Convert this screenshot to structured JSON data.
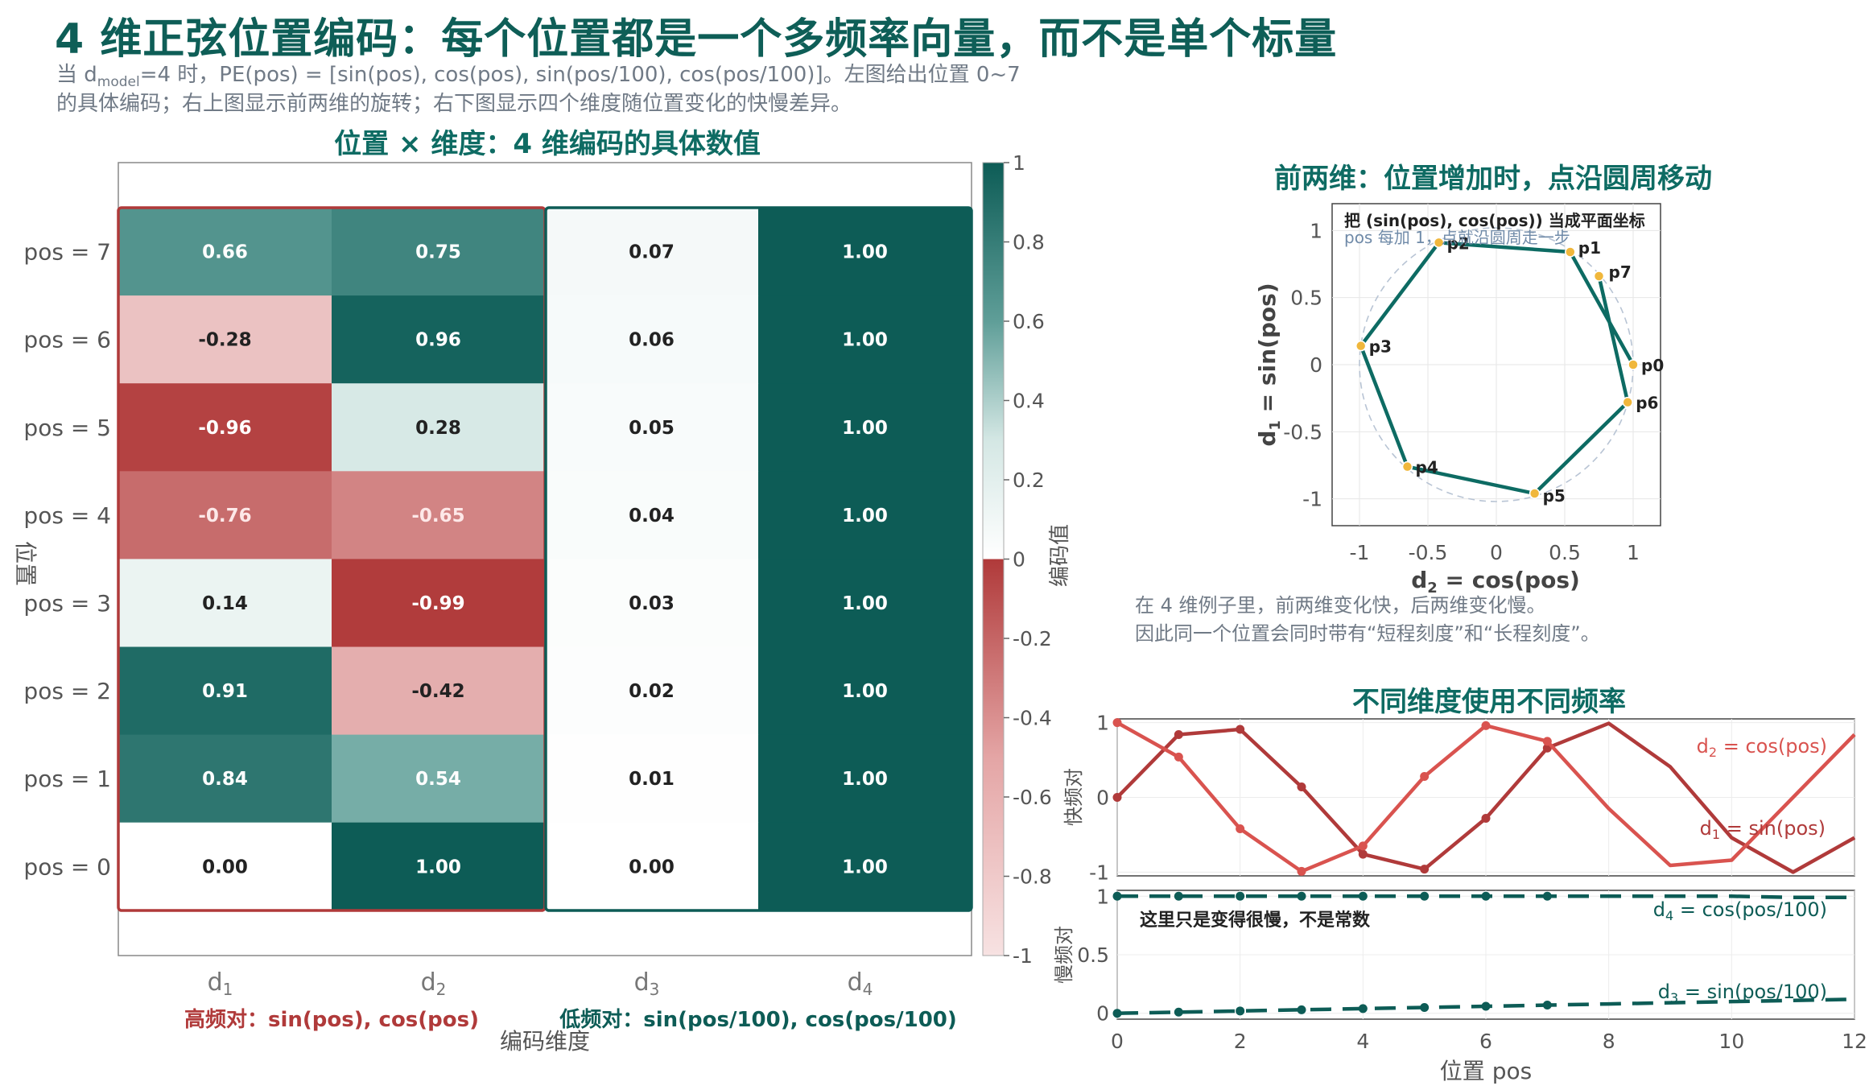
{
  "header": {
    "title": "4 维正弦位置编码：每个位置都是一个多频率向量，而不是单个标量",
    "subtitle_pre": "当 d",
    "subtitle_sub": "model",
    "subtitle_post": "=4 时，PE(pos) = [sin(pos), cos(pos), sin(pos/100), cos(pos/100)]。左图给出位置 0~7",
    "subtitle_line2": "的具体编码；右上图显示前两维的旋转；右下图显示四个维度随位置变化的快慢差异。"
  },
  "colors": {
    "teal": "#0d5c56",
    "red": "#b03a3a",
    "red_light": "#d9534f",
    "point": "#f0b73c",
    "axis": "#555555"
  },
  "chart_data": [
    {
      "type": "heatmap",
      "id": "heatmap",
      "title": "位置 × 维度：4 维编码的具体数值",
      "xlabel": "编码维度",
      "ylabel": "位置",
      "columns": [
        "d",
        "d",
        "d",
        "d"
      ],
      "column_subscripts": [
        "1",
        "2",
        "3",
        "4"
      ],
      "rows": [
        "pos = 7",
        "pos = 6",
        "pos = 5",
        "pos = 4",
        "pos = 3",
        "pos = 2",
        "pos = 1",
        "pos = 0"
      ],
      "values": [
        [
          0.66,
          0.75,
          0.07,
          1.0
        ],
        [
          -0.28,
          0.96,
          0.06,
          1.0
        ],
        [
          -0.96,
          0.28,
          0.05,
          1.0
        ],
        [
          -0.76,
          -0.65,
          0.04,
          1.0
        ],
        [
          0.14,
          -0.99,
          0.03,
          1.0
        ],
        [
          0.91,
          -0.42,
          0.02,
          1.0
        ],
        [
          0.84,
          0.54,
          0.01,
          1.0
        ],
        [
          0.0,
          1.0,
          0.0,
          1.0
        ]
      ],
      "value_labels": [
        [
          "0.66",
          "0.75",
          "0.07",
          "1.00"
        ],
        [
          "-0.28",
          "0.96",
          "0.06",
          "1.00"
        ],
        [
          "-0.96",
          "0.28",
          "0.05",
          "1.00"
        ],
        [
          "-0.76",
          "-0.65",
          "0.04",
          "1.00"
        ],
        [
          "0.14",
          "-0.99",
          "0.03",
          "1.00"
        ],
        [
          "0.91",
          "-0.42",
          "0.02",
          "1.00"
        ],
        [
          "0.84",
          "0.54",
          "0.01",
          "1.00"
        ],
        [
          "0.00",
          "1.00",
          "0.00",
          "1.00"
        ]
      ],
      "group_labels": [
        "高频对：sin(pos), cos(pos)",
        "低频对：sin(pos/100), cos(pos/100)"
      ],
      "colorbar": {
        "label": "编码值",
        "range": [
          -1,
          1
        ],
        "ticks": [
          1,
          0.8,
          0.6,
          0.4,
          0.2,
          0,
          -0.2,
          -0.4,
          -0.6,
          -0.8,
          -1
        ],
        "tick_labels": [
          "1",
          "0.8",
          "0.6",
          "0.4",
          "0.2",
          "0",
          "-0.2",
          "-0.4",
          "-0.6",
          "-0.8",
          "-1"
        ]
      }
    },
    {
      "type": "line",
      "id": "circle",
      "title": "前两维：位置增加时，点沿圆周移动",
      "xlabel_pre": "d",
      "xlabel_sub": "2",
      "xlabel_post": " = cos(pos)",
      "ylabel_pre": "d",
      "ylabel_sub": "1",
      "ylabel_post": " = sin(pos)",
      "xlim": [
        -1.2,
        1.2
      ],
      "ylim": [
        -1.2,
        1.2
      ],
      "ticks": [
        -1,
        -0.5,
        0,
        0.5,
        1
      ],
      "tick_labels": [
        "-1",
        "-0.5",
        "0",
        "0.5",
        "1"
      ],
      "points": [
        {
          "label": "p0",
          "x": 1.0,
          "y": 0.0
        },
        {
          "label": "p1",
          "x": 0.54,
          "y": 0.84
        },
        {
          "label": "p2",
          "x": -0.42,
          "y": 0.91
        },
        {
          "label": "p3",
          "x": -0.99,
          "y": 0.14
        },
        {
          "label": "p4",
          "x": -0.65,
          "y": -0.76
        },
        {
          "label": "p5",
          "x": 0.28,
          "y": -0.96
        },
        {
          "label": "p6",
          "x": 0.96,
          "y": -0.28
        },
        {
          "label": "p7",
          "x": 0.75,
          "y": 0.66
        }
      ],
      "annotation_line1": "把 (sin(pos), cos(pos)) 当成平面坐标",
      "annotation_line2": "pos 每加 1，点就沿圆周走一步"
    },
    {
      "type": "line",
      "id": "fast",
      "title": "不同维度使用不同频率",
      "ylabel": "快频对",
      "xlim": [
        0,
        12
      ],
      "ylim": [
        -1.05,
        1.05
      ],
      "yticks": [
        1,
        0,
        -1
      ],
      "ytick_labels": [
        "1",
        "0",
        "-1"
      ],
      "series": [
        {
          "name": "d1 = sin(pos)",
          "name_pre": "d",
          "name_sub": "1",
          "name_post": " = sin(pos)",
          "x": [
            0,
            1,
            2,
            3,
            4,
            5,
            6,
            7,
            8,
            9,
            10,
            11,
            12
          ],
          "values": [
            0.0,
            0.84,
            0.91,
            0.14,
            -0.76,
            -0.96,
            -0.28,
            0.66,
            0.99,
            0.41,
            -0.54,
            -1.0,
            -0.54
          ],
          "markers": [
            0,
            1,
            2,
            3,
            4,
            5,
            6,
            7
          ]
        },
        {
          "name": "d2 = cos(pos)",
          "name_pre": "d",
          "name_sub": "2",
          "name_post": " = cos(pos)",
          "x": [
            0,
            1,
            2,
            3,
            4,
            5,
            6,
            7,
            8,
            9,
            10,
            11,
            12
          ],
          "values": [
            1.0,
            0.54,
            -0.42,
            -0.99,
            -0.65,
            0.28,
            0.96,
            0.75,
            -0.15,
            -0.91,
            -0.84,
            0.0,
            0.84
          ],
          "markers": [
            0,
            1,
            2,
            3,
            4,
            5,
            6,
            7
          ]
        }
      ]
    },
    {
      "type": "line",
      "id": "slow",
      "ylabel": "慢频对",
      "xlabel": "位置 pos",
      "xlim": [
        0,
        12
      ],
      "ylim": [
        -0.05,
        1.05
      ],
      "yticks": [
        1,
        0.5,
        0
      ],
      "ytick_labels": [
        "1",
        "0.5",
        "0"
      ],
      "xticks": [
        0,
        2,
        4,
        6,
        8,
        10,
        12
      ],
      "xtick_labels": [
        "0",
        "2",
        "4",
        "6",
        "8",
        "10",
        "12"
      ],
      "series": [
        {
          "name": "d4 = cos(pos/100)",
          "name_pre": "d",
          "name_sub": "4",
          "name_post": " = cos(pos/100)",
          "x": [
            0,
            1,
            2,
            3,
            4,
            5,
            6,
            7,
            8,
            9,
            10,
            11,
            12
          ],
          "values": [
            1.0,
            1.0,
            1.0,
            1.0,
            1.0,
            1.0,
            1.0,
            1.0,
            1.0,
            1.0,
            1.0,
            0.99,
            0.99
          ],
          "markers": [
            0,
            1,
            2,
            3,
            4,
            5,
            6,
            7
          ]
        },
        {
          "name": "d3 = sin(pos/100)",
          "name_pre": "d",
          "name_sub": "3",
          "name_post": " = sin(pos/100)",
          "x": [
            0,
            1,
            2,
            3,
            4,
            5,
            6,
            7,
            8,
            9,
            10,
            11,
            12
          ],
          "values": [
            0.0,
            0.01,
            0.02,
            0.03,
            0.04,
            0.05,
            0.06,
            0.07,
            0.08,
            0.09,
            0.1,
            0.11,
            0.12
          ],
          "markers": [
            0,
            1,
            2,
            3,
            4,
            5,
            6,
            7
          ]
        }
      ],
      "annotation": "这里只是变得很慢，不是常数"
    }
  ],
  "note": {
    "line1": "在 4 维例子里，前两维变化快，后两维变化慢。",
    "line2": "因此同一个位置会同时带有“短程刻度”和“长程刻度”。"
  }
}
